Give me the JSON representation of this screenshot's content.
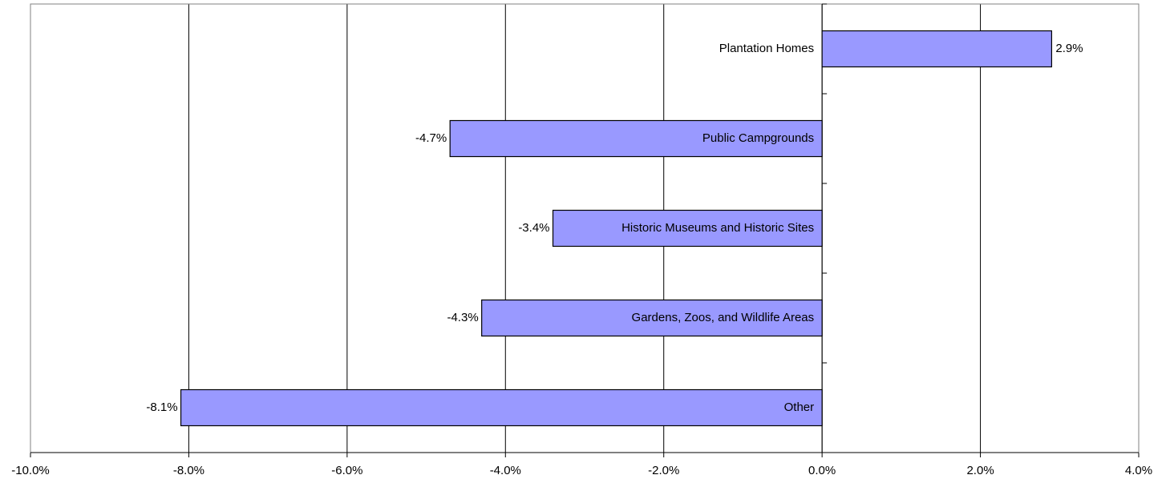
{
  "chart_data": {
    "type": "bar",
    "orientation": "horizontal",
    "categories": [
      "Plantation Homes",
      "Public Campgrounds",
      "Historic Museums and Historic Sites",
      "Gardens, Zoos, and Wildlife Areas",
      "Other"
    ],
    "values": [
      2.9,
      -4.7,
      -3.4,
      -4.3,
      -8.1
    ],
    "value_labels": [
      "2.9%",
      "-4.7%",
      "-3.4%",
      "-4.3%",
      "-8.1%"
    ],
    "color": "#9999ff",
    "xlim": [
      -10,
      4
    ],
    "xticks": [
      {
        "value": -10,
        "label": "-10.0%"
      },
      {
        "value": -8,
        "label": "-8.0%"
      },
      {
        "value": -6,
        "label": "-6.0%"
      },
      {
        "value": -4,
        "label": "-4.0%"
      },
      {
        "value": -2,
        "label": "-2.0%"
      },
      {
        "value": 0,
        "label": "0.0%"
      },
      {
        "value": 2,
        "label": "2.0%"
      },
      {
        "value": 4,
        "label": "4.0%"
      }
    ],
    "grid": true
  }
}
